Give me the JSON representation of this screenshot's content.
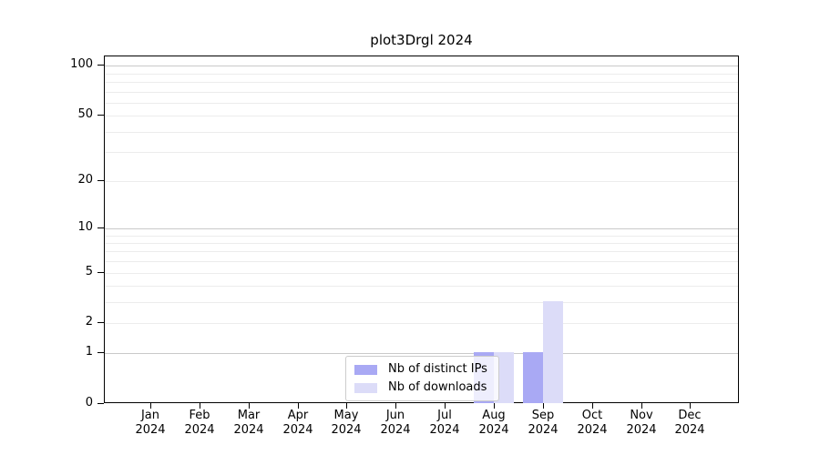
{
  "title": "plot3Drgl 2024",
  "chart_data": {
    "type": "bar",
    "title": "plot3Drgl 2024",
    "x_months": [
      "Jan",
      "Feb",
      "Mar",
      "Apr",
      "May",
      "Jun",
      "Jul",
      "Aug",
      "Sep",
      "Oct",
      "Nov",
      "Dec"
    ],
    "x_year": "2024",
    "series": [
      {
        "name": "Nb of distinct IPs",
        "color": "#a9a9f4",
        "values": [
          0,
          0,
          0,
          0,
          0,
          0,
          0,
          1,
          1,
          0,
          0,
          0
        ]
      },
      {
        "name": "Nb of downloads",
        "color": "#dcdcf8",
        "values": [
          0,
          0,
          0,
          0,
          0,
          0,
          0,
          1,
          3,
          0,
          0,
          0
        ]
      }
    ],
    "y_axis": {
      "scale": "log1p",
      "tick_values": [
        0,
        1,
        2,
        5,
        10,
        20,
        50,
        100
      ],
      "major_gridlines": [
        1,
        10,
        100
      ],
      "minor_gridlines": [
        2,
        3,
        4,
        5,
        6,
        7,
        8,
        9,
        20,
        30,
        40,
        50,
        60,
        70,
        80,
        90
      ],
      "ylim": [
        0,
        114
      ]
    },
    "grid": "horizontal",
    "legend_position": "lower center"
  },
  "colors": {
    "bar_distinct_ips": "#a9a9f4",
    "bar_downloads": "#dcdcf8",
    "major_grid": "#c9c9c9",
    "minor_grid": "#ececec",
    "spine": "#000000",
    "legend_border": "#cccccc"
  }
}
